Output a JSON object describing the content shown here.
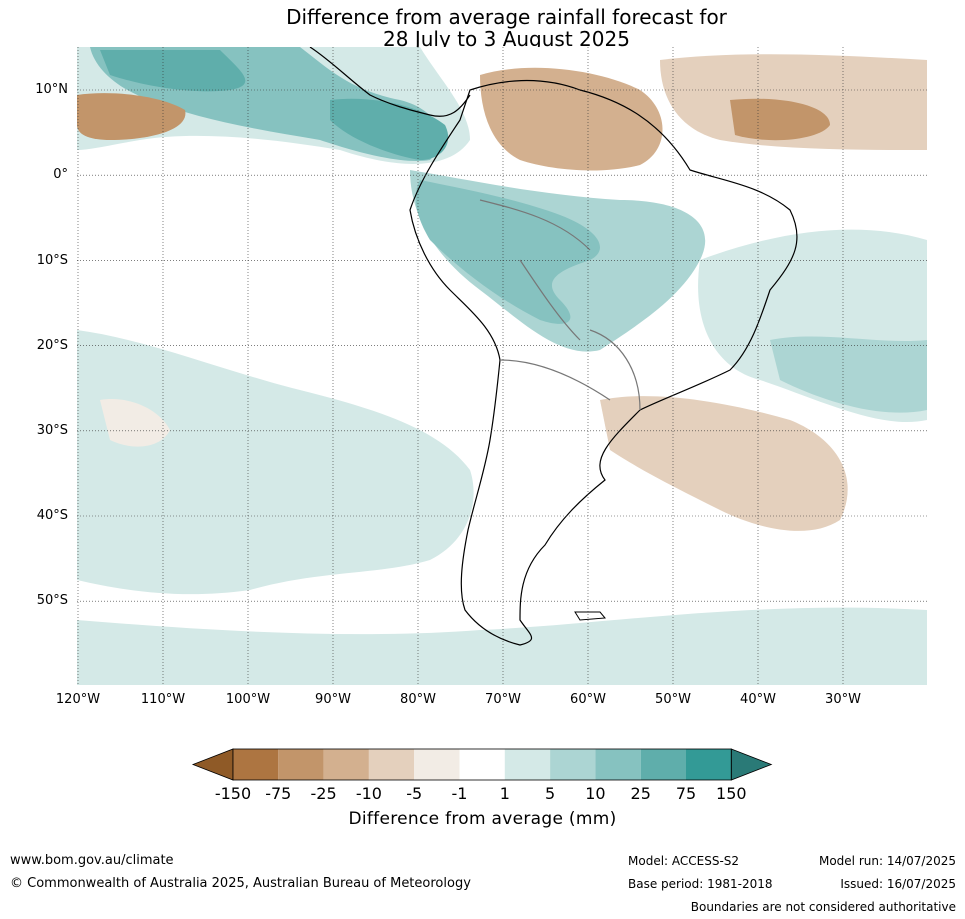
{
  "title": {
    "line1": "Difference from average rainfall forecast for",
    "line2": "28 July to 3 August 2025"
  },
  "map": {
    "lat_labels": [
      "10°N",
      "0°",
      "10°S",
      "20°S",
      "30°S",
      "40°S",
      "50°S"
    ],
    "lon_labels": [
      "120°W",
      "110°W",
      "100°W",
      "90°W",
      "80°W",
      "70°W",
      "60°W",
      "50°W",
      "40°W",
      "30°W"
    ],
    "gridlines": "dotted"
  },
  "colorbar": {
    "title": "Difference from average (mm)",
    "labels": [
      "-150",
      "-75",
      "-25",
      "-10",
      "-5",
      "-1",
      "1",
      "5",
      "10",
      "25",
      "75",
      "150"
    ],
    "colors": [
      "#8f5a27",
      "#ad7541",
      "#c2956a",
      "#d3b08f",
      "#e4d0bd",
      "#f2ece5",
      "#ffffff",
      "#d4e9e7",
      "#acd5d3",
      "#86c2c0",
      "#5faeab",
      "#339a96",
      "#2a7a77"
    ]
  },
  "footer": {
    "website": "www.bom.gov.au/climate",
    "copyright": "© Commonwealth of Australia 2025, Australian Bureau of Meteorology",
    "model": "Model: ACCESS-S2",
    "base_period": "Base period: 1981-2018",
    "model_run": "Model run: 14/07/2025",
    "issued": "Issued: 16/07/2025",
    "disclaimer": "Boundaries are not considered authoritative"
  }
}
